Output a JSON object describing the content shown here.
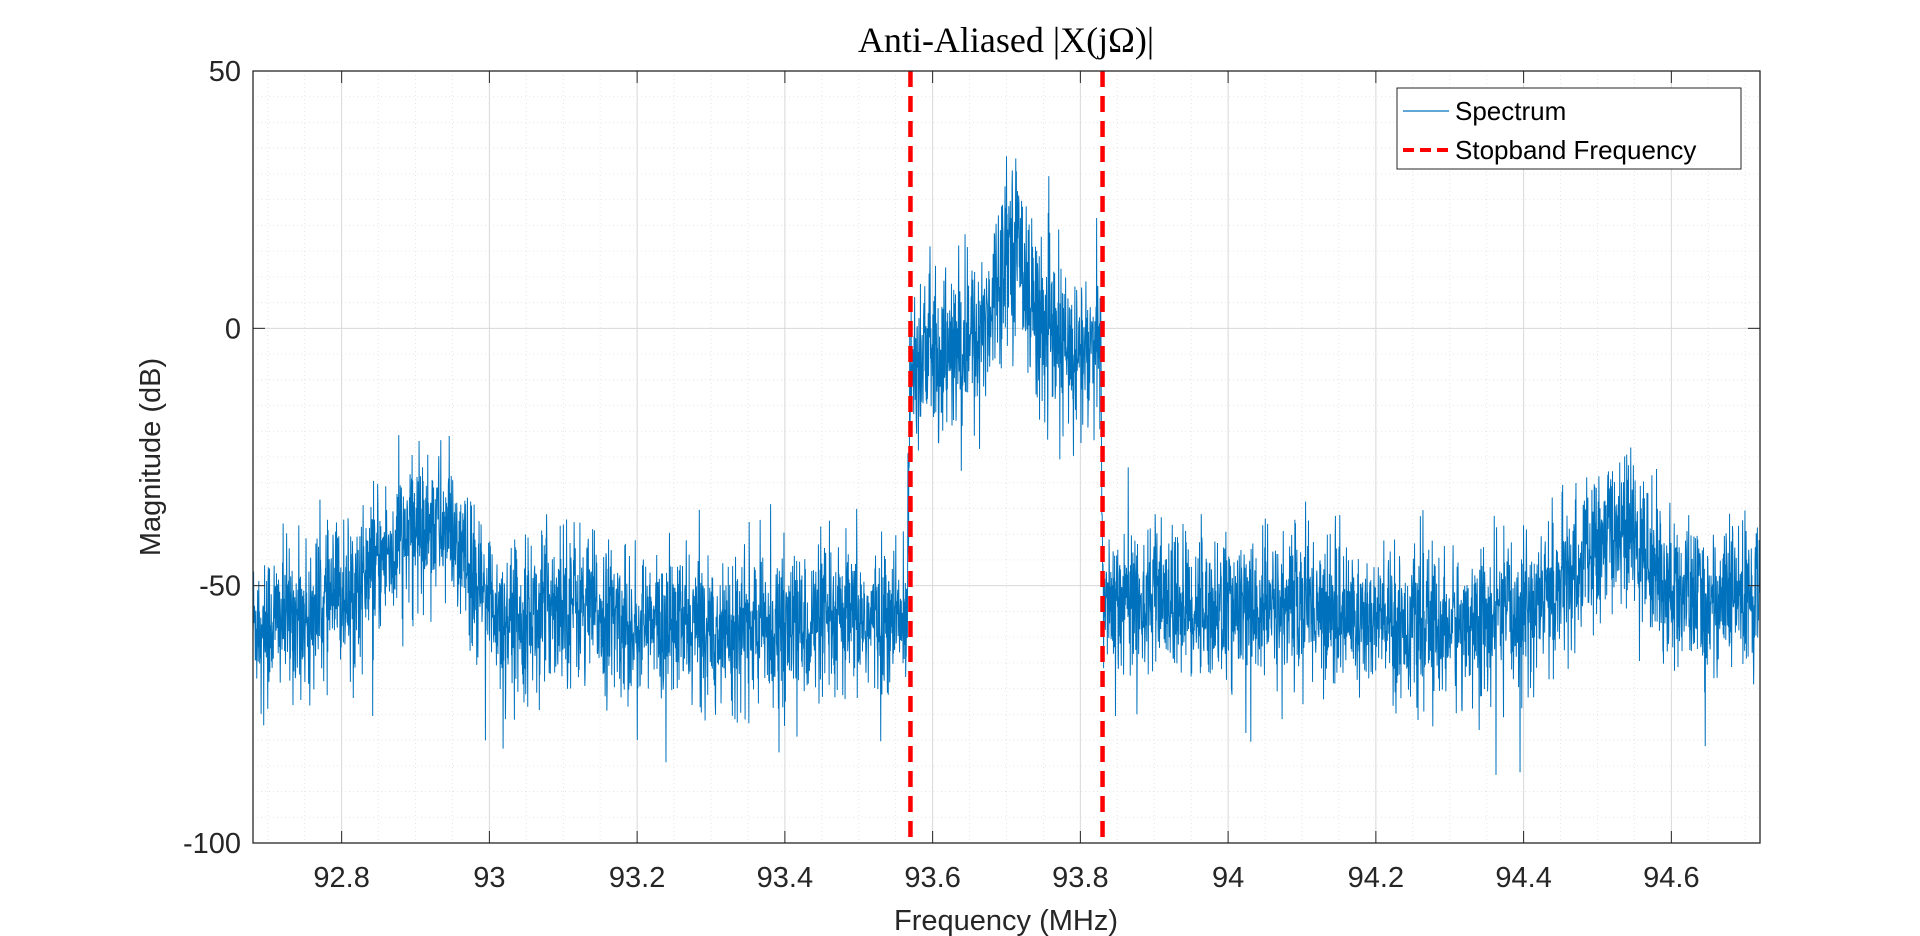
{
  "chart_data": {
    "type": "line",
    "title": "Anti-Aliased |X(jΩ)|",
    "xlabel": "Frequency (MHz)",
    "ylabel": "Magnitude (dB)",
    "xlim": [
      92.68,
      94.72
    ],
    "ylim": [
      -100,
      50
    ],
    "x_ticks": [
      92.8,
      93,
      93.2,
      93.4,
      93.6,
      93.8,
      94,
      94.2,
      94.4,
      94.6
    ],
    "x_tick_labels": [
      "92.8",
      "93",
      "93.2",
      "93.4",
      "93.6",
      "93.8",
      "94",
      "94.2",
      "94.4",
      "94.6"
    ],
    "y_ticks": [
      50,
      0,
      -50,
      -100
    ],
    "y_tick_labels": [
      "50",
      "0",
      "-50",
      "-100"
    ],
    "grid": true,
    "minor_grid": true,
    "legend_position": "top-right",
    "series": [
      {
        "name": "Spectrum",
        "color": "#0072BD",
        "style": "solid",
        "envelope": {
          "x": [
            92.68,
            92.75,
            92.82,
            92.86,
            92.89,
            92.92,
            92.95,
            92.98,
            93.02,
            93.06,
            93.1,
            93.14,
            93.2,
            93.3,
            93.4,
            93.5,
            93.565,
            93.57,
            93.6,
            93.63,
            93.66,
            93.68,
            93.7,
            93.72,
            93.74,
            93.77,
            93.8,
            93.828,
            93.83,
            93.86,
            93.95,
            94.05,
            94.1,
            94.2,
            94.3,
            94.4,
            94.45,
            94.5,
            94.53,
            94.56,
            94.6,
            94.65,
            94.72
          ],
          "mean": [
            -57,
            -56,
            -50,
            -44,
            -40,
            -37,
            -40,
            -50,
            -56,
            -55,
            -52,
            -55,
            -58,
            -58,
            -58,
            -57,
            -57,
            -5,
            -5,
            -5,
            -2,
            5,
            18,
            15,
            3,
            -4,
            -5,
            -5,
            -52,
            -52,
            -54,
            -55,
            -53,
            -57,
            -58,
            -55,
            -50,
            -43,
            -38,
            -43,
            -51,
            -53,
            -52
          ],
          "spread": [
            7,
            7,
            7,
            7,
            7,
            7,
            7,
            7,
            7,
            7,
            8,
            7,
            7,
            7,
            7,
            7,
            7,
            8,
            8,
            8,
            8,
            8,
            8,
            8,
            8,
            8,
            8,
            8,
            7,
            7,
            7,
            7,
            7,
            7,
            7,
            7,
            7,
            7,
            7,
            7,
            7,
            7,
            7
          ]
        }
      },
      {
        "name": "Stopband Frequency",
        "color": "#FF0000",
        "style": "dashed",
        "x": [
          93.57,
          93.83
        ]
      }
    ]
  }
}
